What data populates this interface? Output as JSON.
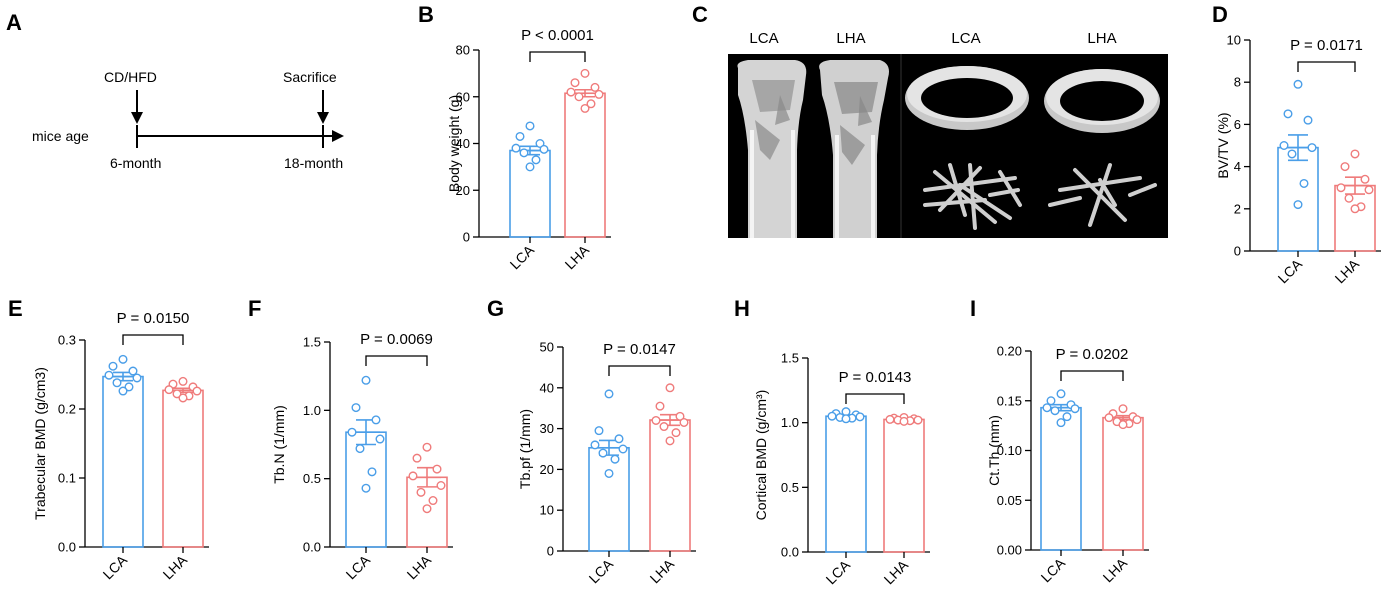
{
  "timeline": {
    "panel": "A",
    "start_label": "CD/HFD",
    "end_label": "Sacrifice",
    "row_label": "mice age",
    "start_age": "6-month",
    "end_age": "18-month"
  },
  "ct_images": {
    "panel": "C",
    "labels": [
      "LCA",
      "LHA",
      "LCA",
      "LHA"
    ]
  },
  "colors": {
    "LCA": "#4a9ee8",
    "LHA": "#ef7b7b",
    "axis": "#000000"
  },
  "chart_data": [
    {
      "panel": "B",
      "type": "bar",
      "categories": [
        "LCA",
        "LHA"
      ],
      "ylabel": "Body weight (g)",
      "ylim": [
        0,
        80
      ],
      "ticks": [
        "0",
        "20",
        "40",
        "60",
        "80"
      ],
      "p_value": "P < 0.0001",
      "means": [
        37,
        61.5
      ],
      "sem": [
        1.8,
        1.5
      ],
      "points": [
        [
          47.5,
          43,
          40,
          38,
          37.5,
          36,
          33,
          30
        ],
        [
          70,
          66,
          64,
          62,
          61,
          60,
          57,
          55
        ]
      ]
    },
    {
      "panel": "D",
      "type": "bar",
      "categories": [
        "LCA",
        "LHA"
      ],
      "ylabel": "BV/TV  (%)",
      "ylim": [
        0,
        10
      ],
      "ticks": [
        "0",
        "2",
        "4",
        "6",
        "8",
        "10"
      ],
      "p_value": "P = 0.0171",
      "means": [
        4.9,
        3.1
      ],
      "sem": [
        0.6,
        0.4
      ],
      "points": [
        [
          7.9,
          6.5,
          6.2,
          5.0,
          4.9,
          4.6,
          3.2,
          2.2
        ],
        [
          4.6,
          4.0,
          3.4,
          3.0,
          2.9,
          2.5,
          2.1,
          2.0
        ]
      ]
    },
    {
      "panel": "E",
      "type": "bar",
      "categories": [
        "LCA",
        "LHA"
      ],
      "ylabel": "Trabecular BMD (g/cm3)",
      "ylim": [
        0,
        0.3
      ],
      "ticks": [
        "0.0",
        "0.1",
        "0.2",
        "0.3"
      ],
      "p_value": "P = 0.0150",
      "means": [
        0.247,
        0.227
      ],
      "sem": [
        0.006,
        0.003
      ],
      "points": [
        [
          0.272,
          0.262,
          0.255,
          0.249,
          0.245,
          0.238,
          0.232,
          0.226
        ],
        [
          0.24,
          0.236,
          0.232,
          0.228,
          0.226,
          0.222,
          0.219,
          0.216
        ]
      ]
    },
    {
      "panel": "F",
      "type": "bar",
      "categories": [
        "LCA",
        "LHA"
      ],
      "ylabel": "Tb.N (1/mm)",
      "ylim": [
        0,
        1.5
      ],
      "ticks": [
        "0.0",
        "0.5",
        "1.0",
        "1.5"
      ],
      "p_value": "P = 0.0069",
      "means": [
        0.84,
        0.51
      ],
      "sem": [
        0.09,
        0.07
      ],
      "points": [
        [
          1.22,
          1.02,
          0.93,
          0.84,
          0.79,
          0.72,
          0.55,
          0.43
        ],
        [
          0.73,
          0.65,
          0.57,
          0.52,
          0.45,
          0.4,
          0.34,
          0.28
        ]
      ]
    },
    {
      "panel": "G",
      "type": "bar",
      "categories": [
        "LCA",
        "LHA"
      ],
      "ylabel": "Tb.pf  (1/mm)",
      "ylim": [
        0,
        50
      ],
      "ticks": [
        "0",
        "10",
        "20",
        "30",
        "40",
        "50"
      ],
      "p_value": "P = 0.0147",
      "means": [
        25.3,
        32.1
      ],
      "sem": [
        1.8,
        1.3
      ],
      "points": [
        [
          38.5,
          29.5,
          27.5,
          26.0,
          25.0,
          24.0,
          22.5,
          19.0
        ],
        [
          40.0,
          35.5,
          33.0,
          32.0,
          31.5,
          30.5,
          29.0,
          27.0
        ]
      ]
    },
    {
      "panel": "H",
      "type": "bar",
      "categories": [
        "LCA",
        "LHA"
      ],
      "ylabel": "Cortical BMD (g/cm³)",
      "ylim": [
        0,
        1.5
      ],
      "ticks": [
        "0.0",
        "0.5",
        "1.0",
        "1.5"
      ],
      "p_value": "P = 0.0143",
      "means": [
        1.05,
        1.025
      ],
      "sem": [
        0.01,
        0.004
      ],
      "points": [
        [
          1.085,
          1.07,
          1.06,
          1.05,
          1.045,
          1.04,
          1.035,
          1.03
        ],
        [
          1.04,
          1.035,
          1.03,
          1.025,
          1.02,
          1.02,
          1.015,
          1.01
        ]
      ]
    },
    {
      "panel": "I",
      "type": "bar",
      "categories": [
        "LCA",
        "LHA"
      ],
      "ylabel": "Ct.Th (mm)",
      "ylim": [
        0,
        0.2
      ],
      "ticks": [
        "0.00",
        "0.05",
        "0.10",
        "0.15",
        "0.20"
      ],
      "p_value": "P = 0.0202",
      "means": [
        0.143,
        0.133
      ],
      "sem": [
        0.003,
        0.002
      ],
      "points": [
        [
          0.157,
          0.15,
          0.146,
          0.143,
          0.142,
          0.14,
          0.134,
          0.128
        ],
        [
          0.142,
          0.137,
          0.134,
          0.133,
          0.131,
          0.129,
          0.127,
          0.126
        ]
      ]
    }
  ]
}
